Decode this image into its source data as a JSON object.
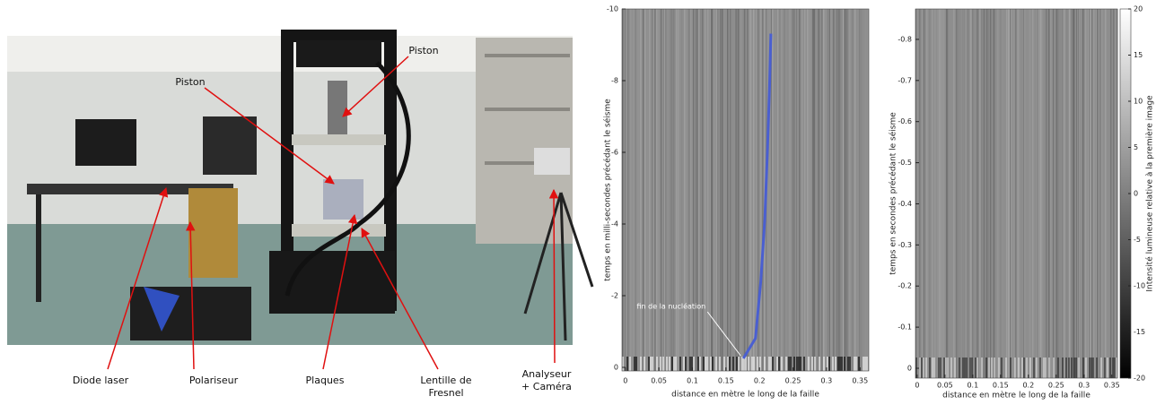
{
  "photo": {
    "labels": [
      {
        "lines": [
          "Piston"
        ]
      },
      {
        "lines": [
          "Piston"
        ]
      },
      {
        "lines": [
          "Diode laser"
        ]
      },
      {
        "lines": [
          "Polariseur"
        ]
      },
      {
        "lines": [
          "Plaques"
        ]
      },
      {
        "lines": [
          "Lentille de",
          "Fresnel"
        ]
      },
      {
        "lines": [
          "Analyseur",
          "+ Caméra"
        ]
      }
    ]
  },
  "chart_data": [
    {
      "type": "line",
      "xlabel": "distance en mètre le long de la faille",
      "ylabel": "temps en milli-secondes précédant le séisme",
      "xlim": [
        -0.005,
        0.363
      ],
      "ylim": [
        0.1,
        -10
      ],
      "xticks": [
        0,
        0.05,
        0.1,
        0.15,
        0.2,
        0.25,
        0.3,
        0.35
      ],
      "yticks": [
        -10,
        -8,
        -6,
        -4,
        -2,
        0
      ],
      "series": [
        {
          "color": "#4a5fd0",
          "x": [
            0.176,
            0.194,
            0.202,
            0.208,
            0.212,
            0.215,
            0.217
          ],
          "values": [
            -0.25,
            -0.81,
            -2.41,
            -4.14,
            -6.11,
            -7.83,
            -9.31
          ]
        }
      ],
      "annotation": {
        "text": "fin de la nucléation",
        "x": 0.176,
        "y": -0.25
      }
    },
    {
      "type": "heatmap",
      "xlabel": "distance en mètre le long de la faille",
      "ylabel": "temps en secondes précédant le séisme",
      "xlim": [
        -0.003,
        0.36
      ],
      "ylim": [
        0.024,
        -0.874
      ],
      "xticks": [
        0,
        0.05,
        0.1,
        0.15,
        0.2,
        0.25,
        0.3,
        0.35
      ],
      "yticks": [
        -0.8,
        -0.7,
        -0.6,
        -0.5,
        -0.4,
        -0.3,
        -0.2,
        -0.1,
        0
      ],
      "colorbar": {
        "label": "Intensité lumineuse relative à la première image",
        "lim": [
          -20,
          20
        ],
        "ticks": [
          20,
          15,
          10,
          5,
          0,
          -5,
          -10,
          -15,
          -20
        ]
      }
    }
  ]
}
